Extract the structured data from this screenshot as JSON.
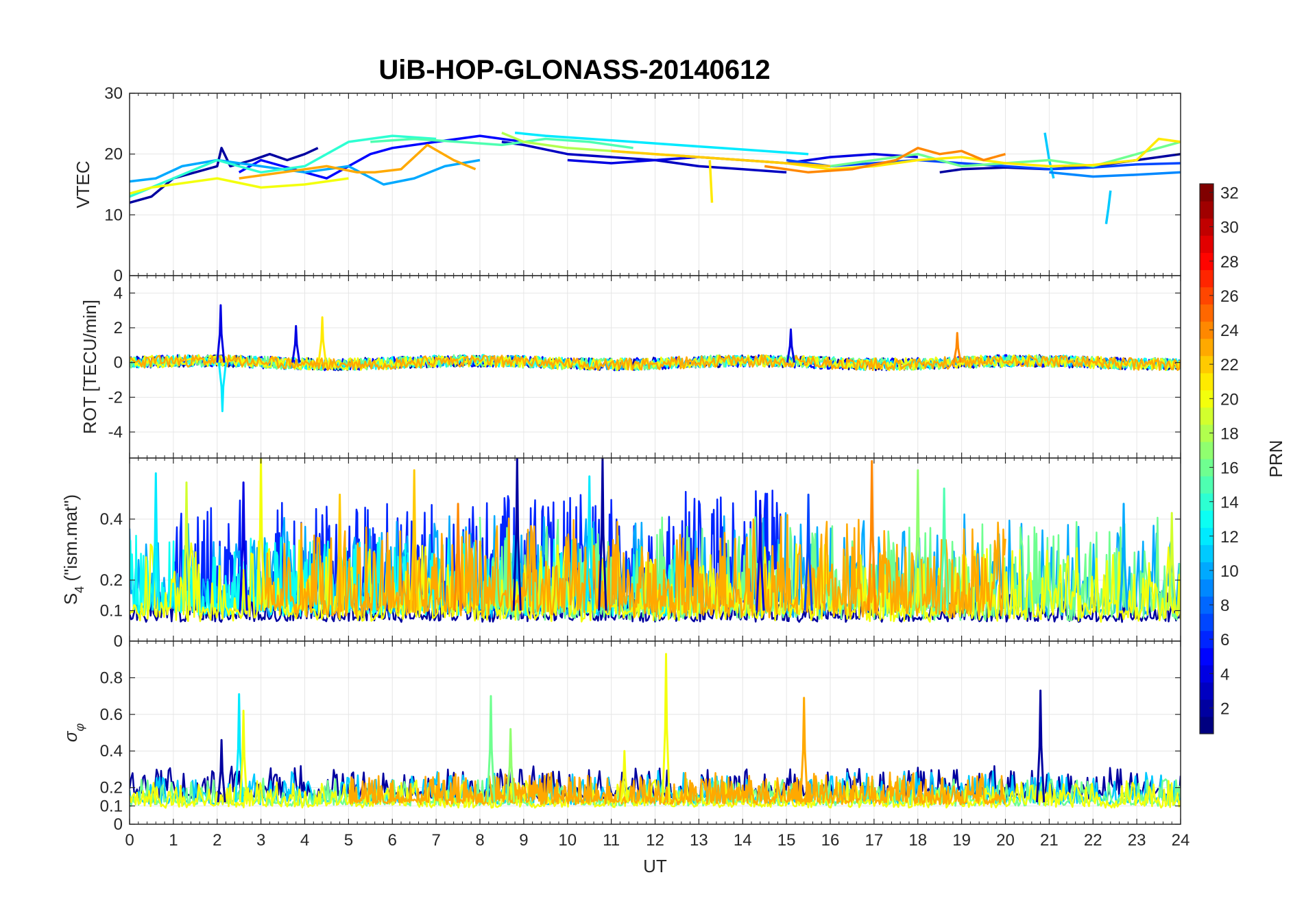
{
  "chart_data": [
    {
      "type": "line",
      "panel": "vtec",
      "title": "UiB-HOP-GLONASS-20140612",
      "ylabel": "VTEC",
      "xlabel": "",
      "xlim": [
        0,
        24
      ],
      "ylim": [
        0,
        30
      ],
      "yticks": [
        0,
        10,
        20,
        30
      ],
      "grid": true,
      "series": [
        {
          "prn": 2,
          "x": [
            0,
            0.5,
            1,
            1.5,
            2,
            2.1,
            2.3,
            2.8,
            3.2,
            3.6,
            4.0,
            4.3
          ],
          "y": [
            12,
            13,
            16,
            17,
            18,
            21,
            18,
            19,
            20,
            19,
            20,
            21
          ]
        },
        {
          "prn": 3,
          "x": [
            8.5,
            9,
            10,
            11,
            12,
            13,
            14,
            15
          ],
          "y": [
            22,
            21.5,
            20,
            19.5,
            19,
            18,
            17.5,
            17
          ]
        },
        {
          "prn": 5,
          "x": [
            2.5,
            3,
            4,
            4.5,
            5,
            5.5,
            6,
            7,
            8,
            9
          ],
          "y": [
            17,
            19,
            17,
            16,
            18,
            20,
            21,
            22,
            23,
            22
          ]
        },
        {
          "prn": 4,
          "x": [
            10,
            11,
            12,
            13,
            14,
            15,
            16,
            17,
            18
          ],
          "y": [
            19,
            18.5,
            19,
            19.5,
            19,
            18.5,
            19.5,
            20,
            19.5
          ]
        },
        {
          "prn": 2,
          "x": [
            18.5,
            19,
            20,
            21,
            22,
            23,
            24
          ],
          "y": [
            17,
            17.5,
            17.8,
            17.5,
            18,
            19,
            20
          ]
        },
        {
          "prn": 7,
          "x": [
            15,
            16,
            17,
            18,
            19,
            20,
            21,
            22,
            23,
            24
          ],
          "y": [
            19,
            18,
            18.5,
            19,
            18.5,
            18,
            17.5,
            17.8,
            18.3,
            18.5
          ]
        },
        {
          "prn": 10,
          "x": [
            0,
            0.6,
            1.2,
            2,
            3,
            4,
            5,
            5.8,
            6.5,
            7.2,
            8
          ],
          "y": [
            15.5,
            16,
            18,
            19,
            18,
            17,
            18,
            15,
            16,
            18,
            19
          ]
        },
        {
          "prn": 12,
          "x": [
            8.8,
            9.5,
            10.5,
            11.5,
            12.5,
            13.5,
            14.5,
            15.5
          ],
          "y": [
            23.5,
            23,
            22.5,
            22,
            21.5,
            21,
            20.5,
            20
          ]
        },
        {
          "prn": 11,
          "x": [
            20.9,
            21.0,
            21.1
          ],
          "y": [
            23.5,
            19,
            16
          ]
        },
        {
          "prn": 11,
          "x": [
            22.3,
            22.35,
            22.4
          ],
          "y": [
            8.5,
            11,
            14
          ]
        },
        {
          "prn": 9,
          "x": [
            21,
            22,
            23,
            24
          ],
          "y": [
            17,
            16.3,
            16.6,
            17
          ]
        },
        {
          "prn": 14,
          "x": [
            0,
            0.5,
            1,
            2,
            3,
            4,
            5,
            6,
            7
          ],
          "y": [
            13,
            14.5,
            16,
            19,
            17,
            18,
            22,
            23,
            22.5
          ]
        },
        {
          "prn": 15,
          "x": [
            5.5,
            6.5,
            7.5,
            8.5,
            9.5,
            10.5,
            11.5
          ],
          "y": [
            22,
            22.5,
            22,
            21.5,
            22.5,
            22,
            21
          ]
        },
        {
          "prn": 16,
          "x": [
            16,
            17,
            18,
            19,
            20,
            21,
            22,
            23,
            24
          ],
          "y": [
            18,
            19,
            20,
            18,
            18.5,
            19,
            18,
            20,
            22
          ]
        },
        {
          "prn": 18,
          "x": [
            8.5,
            9,
            10,
            11,
            12,
            13
          ],
          "y": [
            23.5,
            22,
            21,
            20.5,
            20,
            19.5
          ]
        },
        {
          "prn": 20,
          "x": [
            0,
            0.5,
            1,
            2,
            3,
            4,
            5
          ],
          "y": [
            13.5,
            14.5,
            15,
            16,
            14.5,
            15,
            16
          ]
        },
        {
          "prn": 21,
          "x": [
            13.25,
            13.3
          ],
          "y": [
            19,
            12
          ]
        },
        {
          "prn": 21,
          "x": [
            12,
            13,
            14,
            15,
            16,
            17,
            18,
            19,
            20,
            21,
            22,
            23,
            23.5,
            24
          ],
          "y": [
            20,
            19.5,
            19,
            18.5,
            17.5,
            18,
            19,
            19.5,
            18.5,
            18,
            18.2,
            19,
            22.5,
            22
          ]
        },
        {
          "prn": 23,
          "x": [
            2.5,
            3.5,
            4.5,
            5.2,
            5.6,
            6.2,
            6.8,
            7.4,
            7.9
          ],
          "y": [
            16,
            17,
            18,
            17,
            17,
            17.5,
            21.5,
            19,
            17.5
          ]
        },
        {
          "prn": 24,
          "x": [
            14.5,
            15.5,
            16.5,
            17.5,
            18,
            18.5,
            19,
            19.5,
            20
          ],
          "y": [
            18,
            17,
            17.5,
            19,
            21,
            20,
            20.5,
            19,
            20
          ]
        },
        {
          "prn": 22,
          "x": [
            11,
            12,
            13,
            14,
            15,
            16
          ],
          "y": [
            20.5,
            20,
            19.5,
            19,
            18.5,
            18
          ]
        }
      ]
    },
    {
      "type": "line",
      "panel": "rot",
      "ylabel": "ROT [TECU/min]",
      "xlim": [
        0,
        24
      ],
      "ylim": [
        -5.5,
        5
      ],
      "yticks": [
        -4,
        -2,
        0,
        2,
        4
      ],
      "grid": true,
      "noise_series": [
        {
          "prn": 2,
          "x0": 0,
          "x1": 24,
          "amp": 0.35,
          "seed": 3
        },
        {
          "prn": 5,
          "x0": 0,
          "x1": 24,
          "amp": 0.35,
          "seed": 7
        },
        {
          "prn": 10,
          "x0": 0,
          "x1": 24,
          "amp": 0.3,
          "seed": 11
        },
        {
          "prn": 13,
          "x0": 0,
          "x1": 24,
          "amp": 0.35,
          "seed": 13
        },
        {
          "prn": 16,
          "x0": 0,
          "x1": 24,
          "amp": 0.35,
          "seed": 17
        },
        {
          "prn": 20,
          "x0": 0,
          "x1": 24,
          "amp": 0.35,
          "seed": 19
        },
        {
          "prn": 23,
          "x0": 0,
          "x1": 24,
          "amp": 0.35,
          "seed": 23
        }
      ],
      "spikes": [
        {
          "prn": 4,
          "x": 2.08,
          "y": 3.3
        },
        {
          "prn": 12,
          "x": 2.12,
          "y": -2.8
        },
        {
          "prn": 4,
          "x": 3.8,
          "y": 2.1
        },
        {
          "prn": 21,
          "x": 4.4,
          "y": 2.6
        },
        {
          "prn": 4,
          "x": 15.1,
          "y": 1.9
        },
        {
          "prn": 24,
          "x": 18.9,
          "y": 1.7
        }
      ]
    },
    {
      "type": "line",
      "panel": "s4",
      "ylabel": "S4 (\"ism.mat\")",
      "ylabel_main": "S",
      "ylabel_sub": "4",
      "ylabel_rest": " (\"ism.mat\")",
      "xlim": [
        0,
        24
      ],
      "ylim": [
        0,
        0.6
      ],
      "yticks": [
        0,
        0.1,
        0.2,
        0.4
      ],
      "ytick_labels": [
        "0",
        "0.1",
        "0.2",
        "0.4"
      ],
      "grid": true,
      "noise_series": [
        {
          "prn": 2,
          "x0": 0,
          "x1": 24,
          "base": 0.07,
          "amp": 0.05,
          "seed": 31
        },
        {
          "prn": 6,
          "x0": 1,
          "x1": 15,
          "base": 0.12,
          "amp": 0.18,
          "seed": 37
        },
        {
          "prn": 10,
          "x0": 0,
          "x1": 24,
          "base": 0.1,
          "amp": 0.15,
          "seed": 41
        },
        {
          "prn": 13,
          "x0": 0,
          "x1": 13,
          "base": 0.1,
          "amp": 0.12,
          "seed": 43
        },
        {
          "prn": 16,
          "x0": 8,
          "x1": 24,
          "base": 0.09,
          "amp": 0.15,
          "seed": 47
        },
        {
          "prn": 20,
          "x0": 0,
          "x1": 24,
          "base": 0.08,
          "amp": 0.12,
          "seed": 53
        },
        {
          "prn": 23,
          "x0": 3,
          "x1": 20,
          "base": 0.1,
          "amp": 0.15,
          "seed": 59
        }
      ],
      "spikes": [
        {
          "prn": 12,
          "x": 0.6,
          "y": 0.55
        },
        {
          "prn": 19,
          "x": 1.3,
          "y": 0.52
        },
        {
          "prn": 4,
          "x": 2.6,
          "y": 0.52
        },
        {
          "prn": 20,
          "x": 3.0,
          "y": 0.6
        },
        {
          "prn": 22,
          "x": 4.8,
          "y": 0.48
        },
        {
          "prn": 22,
          "x": 6.5,
          "y": 0.56
        },
        {
          "prn": 24,
          "x": 7.5,
          "y": 0.45
        },
        {
          "prn": 2,
          "x": 8.85,
          "y": 0.6
        },
        {
          "prn": 12,
          "x": 10.5,
          "y": 0.54
        },
        {
          "prn": 2,
          "x": 10.8,
          "y": 0.6
        },
        {
          "prn": 4,
          "x": 14.4,
          "y": 0.46
        },
        {
          "prn": 7,
          "x": 15.5,
          "y": 0.48
        },
        {
          "prn": 24,
          "x": 16.95,
          "y": 0.59
        },
        {
          "prn": 17,
          "x": 18.0,
          "y": 0.56
        },
        {
          "prn": 15,
          "x": 18.6,
          "y": 0.5
        },
        {
          "prn": 10,
          "x": 22.7,
          "y": 0.45
        },
        {
          "prn": 19,
          "x": 23.8,
          "y": 0.42
        }
      ]
    },
    {
      "type": "line",
      "panel": "sigma",
      "ylabel_main": "σ",
      "ylabel_sub": "φ",
      "xlabel": "UT",
      "xlim": [
        0,
        24
      ],
      "ylim": [
        0,
        1
      ],
      "yticks": [
        0,
        0.1,
        0.2,
        0.4,
        0.6,
        0.8
      ],
      "ytick_labels": [
        "0",
        "0.1",
        "0.2",
        "0.4",
        "0.6",
        "0.8"
      ],
      "xticks": [
        0,
        1,
        2,
        3,
        4,
        5,
        6,
        7,
        8,
        9,
        10,
        11,
        12,
        13,
        14,
        15,
        16,
        17,
        18,
        19,
        20,
        21,
        22,
        23,
        24
      ],
      "xtick_labels": [
        "0",
        "1",
        "2",
        "3",
        "4",
        "5",
        "6",
        "7",
        "8",
        "9",
        "10",
        "11",
        "12",
        "13",
        "14",
        "15",
        "16",
        "17",
        "18",
        "19",
        "20",
        "21",
        "22",
        "23",
        "24"
      ],
      "grid": true,
      "noise_series": [
        {
          "prn": 2,
          "x0": 0,
          "x1": 24,
          "base": 0.15,
          "amp": 0.08,
          "seed": 61
        },
        {
          "prn": 11,
          "x0": 0,
          "x1": 24,
          "base": 0.12,
          "amp": 0.08,
          "seed": 67
        },
        {
          "prn": 16,
          "x0": 0,
          "x1": 24,
          "base": 0.11,
          "amp": 0.07,
          "seed": 71
        },
        {
          "prn": 20,
          "x0": 0,
          "x1": 24,
          "base": 0.1,
          "amp": 0.07,
          "seed": 73
        },
        {
          "prn": 23,
          "x0": 5,
          "x1": 20,
          "base": 0.12,
          "amp": 0.08,
          "seed": 79
        }
      ],
      "spikes": [
        {
          "prn": 2,
          "x": 2.1,
          "y": 0.46
        },
        {
          "prn": 12,
          "x": 2.5,
          "y": 0.71
        },
        {
          "prn": 20,
          "x": 2.6,
          "y": 0.62
        },
        {
          "prn": 16,
          "x": 8.25,
          "y": 0.7
        },
        {
          "prn": 17,
          "x": 8.7,
          "y": 0.52
        },
        {
          "prn": 20,
          "x": 11.3,
          "y": 0.4
        },
        {
          "prn": 20,
          "x": 12.25,
          "y": 0.93
        },
        {
          "prn": 23,
          "x": 15.4,
          "y": 0.69
        },
        {
          "prn": 2,
          "x": 20.8,
          "y": 0.73
        }
      ]
    }
  ],
  "colorbar": {
    "label": "PRN",
    "range": [
      1,
      32
    ],
    "ticks": [
      "2",
      "4",
      "6",
      "8",
      "10",
      "12",
      "14",
      "16",
      "18",
      "20",
      "22",
      "24",
      "26",
      "28",
      "30",
      "32"
    ]
  }
}
